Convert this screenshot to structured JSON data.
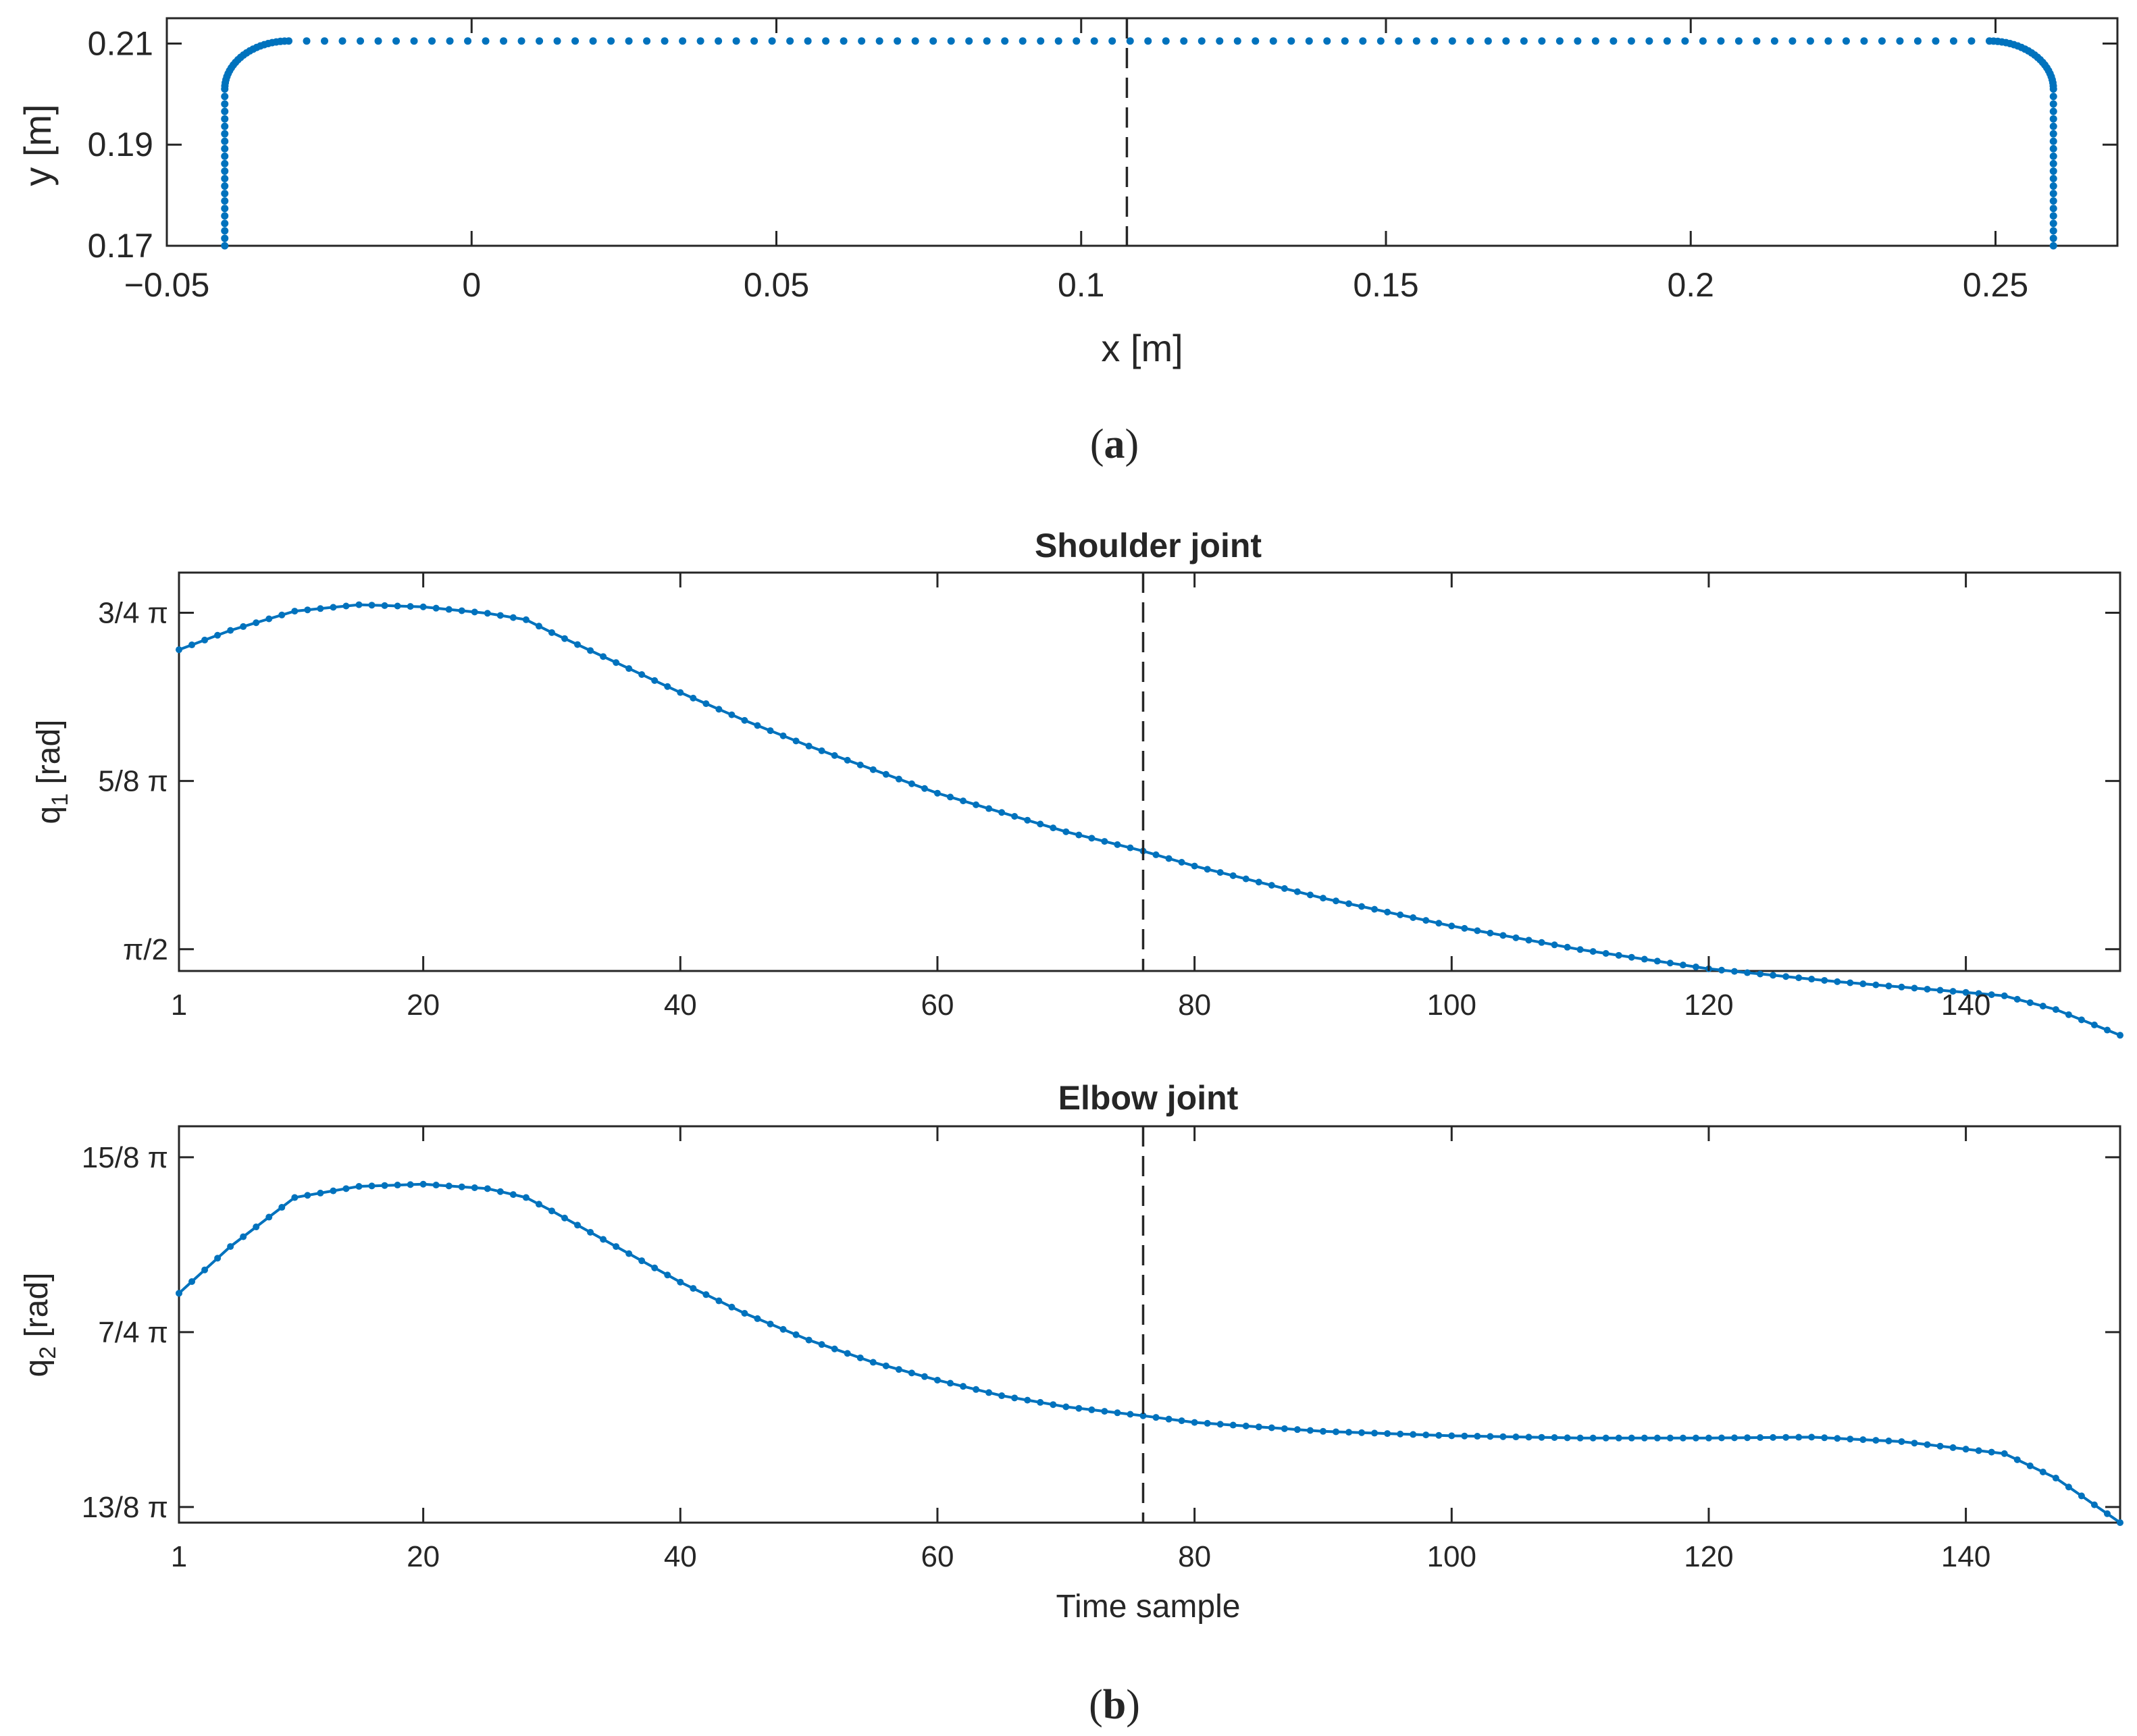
{
  "colors": {
    "series": "#0072BD",
    "axis": "#262626",
    "background": "#FFFFFF"
  },
  "chart_data": [
    {
      "id": "a",
      "type": "scatter",
      "caption_letter": "a",
      "xlabel": "x [m]",
      "ylabel": "y [m]",
      "xlim": [
        -0.05,
        0.27
      ],
      "ylim": [
        0.17,
        0.215
      ],
      "xticks": [
        -0.05,
        0,
        0.05,
        0.1,
        0.15,
        0.2,
        0.25
      ],
      "xtick_labels": [
        "−0.05",
        "0",
        "0.05",
        "0.1",
        "0.15",
        "0.2",
        "0.25"
      ],
      "yticks": [
        0.17,
        0.19,
        0.21
      ],
      "ytick_labels": [
        "0.17",
        "0.19",
        "0.21"
      ],
      "vertical_marker_x": 0.1075,
      "path_description": "rounded rectangular path sampled as dots",
      "path": {
        "x_left": -0.0405,
        "x_right": 0.2595,
        "y_bottom": 0.17,
        "y_top": 0.2105,
        "corner_radius_x": 0.0105,
        "corner_radius_y": 0.0095,
        "n_side_points": 22,
        "n_corner_points": 24,
        "n_top_points": 95
      }
    },
    {
      "id": "b1",
      "type": "line",
      "title": "Shoulder joint",
      "xlabel": "",
      "ylabel": "q",
      "ylabel_sub": "1",
      "ylabel_unit": " [rad]",
      "xlim": [
        1,
        152
      ],
      "ylim": [
        1.52,
        2.45
      ],
      "xticks": [
        1,
        20,
        40,
        60,
        80,
        100,
        120,
        140
      ],
      "xtick_labels": [
        "1",
        "20",
        "40",
        "60",
        "80",
        "100",
        "120",
        "140"
      ],
      "yticks": [
        1.5708,
        1.9635,
        2.3562
      ],
      "ytick_labels": [
        "π/2",
        "5/8 π",
        "3/4 π"
      ],
      "vertical_marker_x": 76,
      "series": [
        {
          "name": "q1",
          "x_start": 1,
          "x_end": 152,
          "keypoints": [
            [
              1,
              2.27
            ],
            [
              5,
              2.315
            ],
            [
              10,
              2.36
            ],
            [
              15,
              2.375
            ],
            [
              20,
              2.37
            ],
            [
              25,
              2.355
            ],
            [
              28,
              2.34
            ],
            [
              30,
              2.31
            ],
            [
              35,
              2.24
            ],
            [
              40,
              2.17
            ],
            [
              45,
              2.105
            ],
            [
              50,
              2.045
            ],
            [
              55,
              1.99
            ],
            [
              60,
              1.935
            ],
            [
              65,
              1.89
            ],
            [
              70,
              1.845
            ],
            [
              76,
              1.8
            ],
            [
              80,
              1.765
            ],
            [
              90,
              1.69
            ],
            [
              100,
              1.625
            ],
            [
              110,
              1.57
            ],
            [
              120,
              1.525
            ],
            [
              130,
              1.495
            ],
            [
              140,
              1.47
            ],
            [
              143,
              1.462
            ],
            [
              147,
              1.43
            ],
            [
              152,
              1.37
            ]
          ]
        }
      ]
    },
    {
      "id": "b2",
      "type": "line",
      "title": "Elbow joint",
      "xlabel": "Time sample",
      "ylabel": "q",
      "ylabel_sub": "2",
      "ylabel_unit": " [rad]",
      "caption_letter": "b",
      "xlim": [
        1,
        152
      ],
      "ylim": [
        5.07,
        5.96
      ],
      "xticks": [
        1,
        20,
        40,
        60,
        80,
        100,
        120,
        140
      ],
      "xtick_labels": [
        "1",
        "20",
        "40",
        "60",
        "80",
        "100",
        "120",
        "140"
      ],
      "yticks": [
        5.1051,
        5.4978,
        5.8905
      ],
      "ytick_labels": [
        "13/8 π",
        "7/4 π",
        "15/8 π"
      ],
      "vertical_marker_x": 76,
      "series": [
        {
          "name": "q2",
          "x_start": 1,
          "x_end": 152,
          "keypoints": [
            [
              1,
              5.585
            ],
            [
              5,
              5.69
            ],
            [
              10,
              5.8
            ],
            [
              15,
              5.825
            ],
            [
              20,
              5.83
            ],
            [
              25,
              5.82
            ],
            [
              28,
              5.8
            ],
            [
              30,
              5.77
            ],
            [
              35,
              5.69
            ],
            [
              40,
              5.61
            ],
            [
              45,
              5.54
            ],
            [
              50,
              5.48
            ],
            [
              55,
              5.43
            ],
            [
              60,
              5.39
            ],
            [
              65,
              5.355
            ],
            [
              70,
              5.33
            ],
            [
              76,
              5.31
            ],
            [
              80,
              5.295
            ],
            [
              90,
              5.275
            ],
            [
              100,
              5.265
            ],
            [
              110,
              5.26
            ],
            [
              120,
              5.26
            ],
            [
              128,
              5.262
            ],
            [
              135,
              5.252
            ],
            [
              140,
              5.235
            ],
            [
              143,
              5.225
            ],
            [
              147,
              5.17
            ],
            [
              152,
              5.07
            ]
          ]
        }
      ]
    }
  ]
}
